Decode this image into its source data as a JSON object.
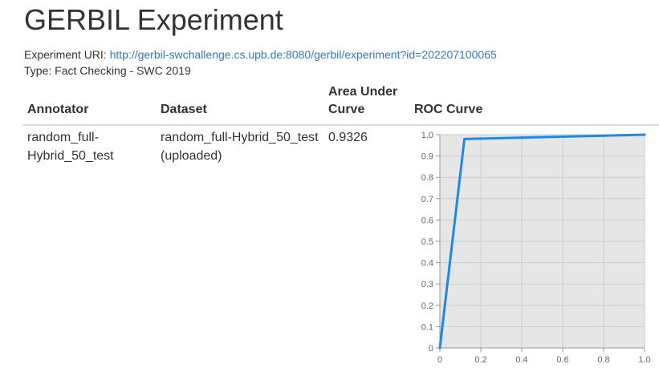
{
  "page": {
    "title": "GERBIL Experiment",
    "uri_label": "Experiment URI:",
    "uri": "http://gerbil-swchallenge.cs.upb.de:8080/gerbil/experiment?id=202207100065",
    "type_label": "Type:",
    "type_value": "Fact Checking - SWC 2019"
  },
  "table": {
    "headers": {
      "annotator": "Annotator",
      "dataset": "Dataset",
      "auc_line1": "Area Under",
      "auc_line2": "Curve",
      "roc": "ROC Curve"
    },
    "rows": [
      {
        "annotator_line1": "random_full-",
        "annotator_line2": "Hybrid_50_test",
        "dataset_line1": "random_full-Hybrid_50_test",
        "dataset_line2": "(uploaded)",
        "auc": "0.9326"
      }
    ]
  },
  "colors": {
    "line": "#1e88e5",
    "plot_background": "#e6e6e6",
    "grid": "#cccccc",
    "link": "#337ab7"
  },
  "chart_data": {
    "type": "line",
    "title": "",
    "xlabel": "",
    "ylabel": "",
    "xlim": [
      0,
      1
    ],
    "ylim": [
      0,
      1
    ],
    "x_ticks": [
      "0",
      "0.2",
      "0.4",
      "0.6",
      "0.8",
      "1.0"
    ],
    "y_ticks": [
      "0",
      "0.1",
      "0.2",
      "0.3",
      "0.4",
      "0.5",
      "0.6",
      "0.7",
      "0.8",
      "0.9",
      "1.0"
    ],
    "grid": true,
    "series": [
      {
        "x": [
          0,
          0.12,
          1.0
        ],
        "y": [
          0,
          0.98,
          1.0
        ]
      }
    ]
  }
}
